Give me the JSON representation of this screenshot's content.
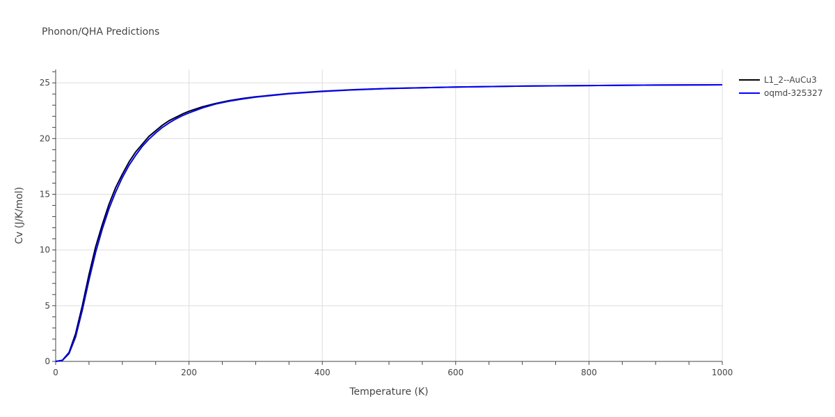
{
  "chart_data": {
    "type": "line",
    "title": "Phonon/QHA Predictions",
    "xlabel": "Temperature (K)",
    "ylabel": "Cv (J/K/mol)",
    "xlim": [
      0,
      1000
    ],
    "ylim": [
      0,
      26.2
    ],
    "xticks": [
      0,
      200,
      400,
      600,
      800,
      1000
    ],
    "yticks": [
      0,
      5,
      10,
      15,
      20,
      25
    ],
    "grid": true,
    "legend_position": "top-right",
    "series": [
      {
        "name": "L1_2--AuCu3",
        "color": "#000000",
        "x": [
          0,
          10,
          20,
          30,
          40,
          50,
          60,
          70,
          80,
          90,
          100,
          110,
          120,
          130,
          140,
          150,
          160,
          170,
          180,
          190,
          200,
          220,
          240,
          260,
          280,
          300,
          350,
          400,
          450,
          500,
          600,
          700,
          800,
          900,
          1000
        ],
        "y": [
          0,
          0.1,
          0.8,
          2.5,
          5.0,
          7.8,
          10.3,
          12.3,
          14.1,
          15.6,
          16.8,
          17.9,
          18.8,
          19.5,
          20.2,
          20.7,
          21.2,
          21.6,
          21.9,
          22.2,
          22.45,
          22.85,
          23.15,
          23.4,
          23.6,
          23.75,
          24.05,
          24.25,
          24.4,
          24.5,
          24.63,
          24.71,
          24.76,
          24.8,
          24.83
        ]
      },
      {
        "name": "oqmd-325327",
        "color": "#0000ff",
        "x": [
          0,
          10,
          20,
          30,
          40,
          50,
          60,
          70,
          80,
          90,
          100,
          110,
          120,
          130,
          140,
          150,
          160,
          170,
          180,
          190,
          200,
          220,
          240,
          260,
          280,
          300,
          350,
          400,
          450,
          500,
          600,
          700,
          800,
          900,
          1000
        ],
        "y": [
          0,
          0.08,
          0.7,
          2.2,
          4.6,
          7.3,
          9.8,
          11.9,
          13.7,
          15.2,
          16.5,
          17.6,
          18.5,
          19.3,
          19.95,
          20.5,
          21.0,
          21.4,
          21.75,
          22.05,
          22.3,
          22.75,
          23.1,
          23.35,
          23.55,
          23.72,
          24.02,
          24.23,
          24.38,
          24.49,
          24.63,
          24.71,
          24.76,
          24.8,
          24.83
        ]
      }
    ]
  }
}
